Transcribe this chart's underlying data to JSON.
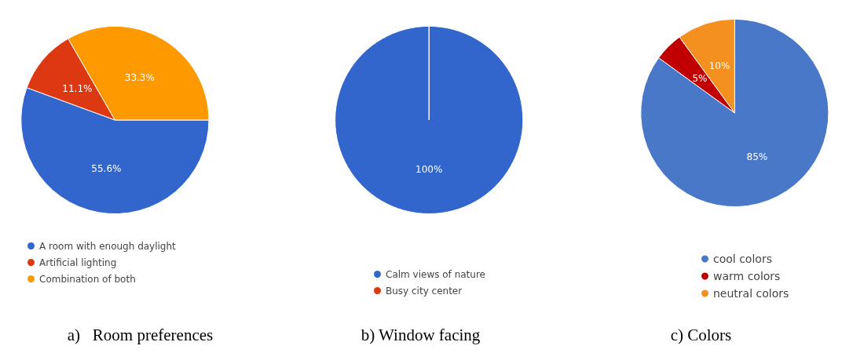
{
  "chart_data": [
    {
      "type": "pie",
      "title": "a)   Room preferences",
      "categories": [
        "A room with enough daylight",
        "Artificial lighting",
        "Combination of both"
      ],
      "values": [
        55.6,
        11.1,
        33.3
      ],
      "colors": [
        "#3366cc",
        "#dc3912",
        "#ff9900"
      ],
      "value_labels": [
        "55.6%",
        "11.1%",
        "33.3%"
      ],
      "legend": "bottom left"
    },
    {
      "type": "pie",
      "title": "b) Window facing",
      "categories": [
        "Calm views of nature",
        "Busy city center"
      ],
      "values": [
        100,
        0
      ],
      "colors": [
        "#3366cc",
        "#dc3912"
      ],
      "value_labels": [
        "100%",
        null
      ],
      "legend": "bottom"
    },
    {
      "type": "pie",
      "title": "c) Colors",
      "categories": [
        "cool colors",
        "warm colors",
        "neutral colors"
      ],
      "values": [
        85,
        5,
        10
      ],
      "colors": [
        "#4a78c8",
        "#c00000",
        "#f39020"
      ],
      "value_labels": [
        "85%",
        "5%",
        "10%"
      ],
      "legend": "bottom right"
    }
  ]
}
